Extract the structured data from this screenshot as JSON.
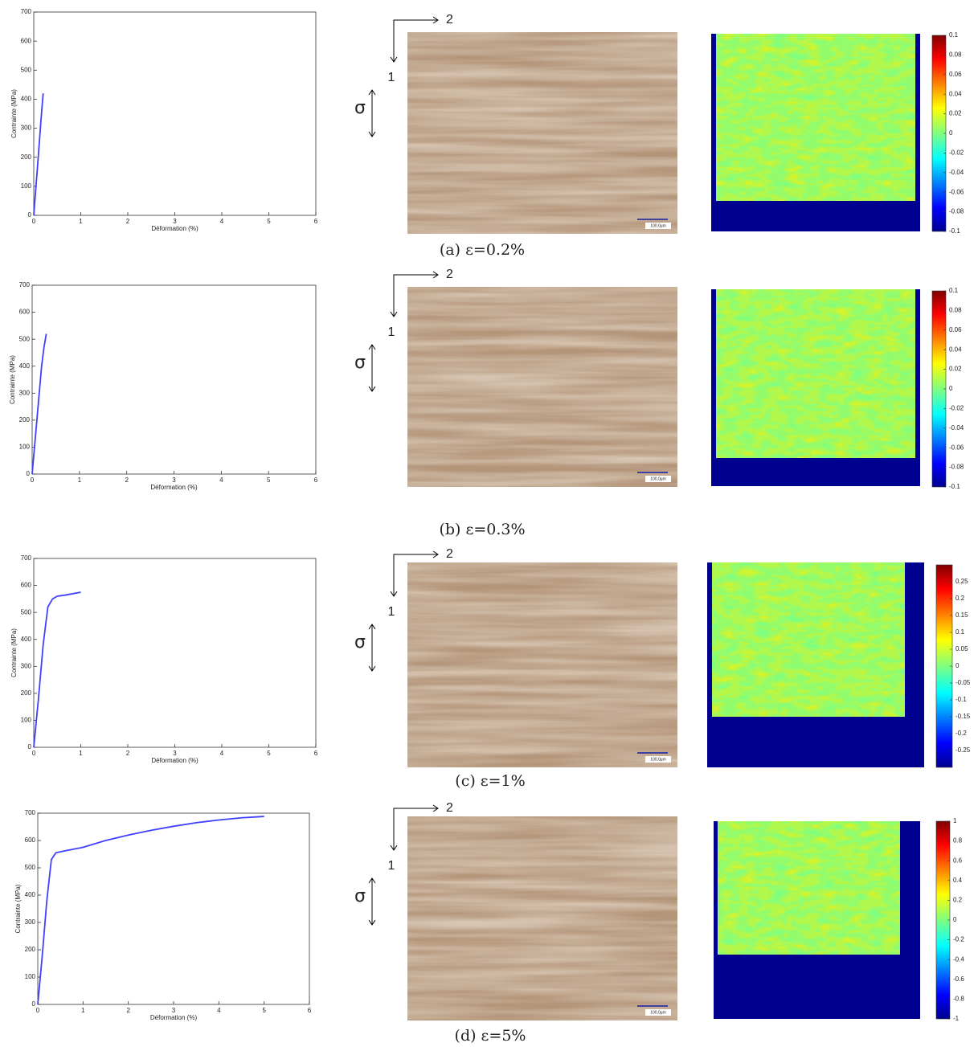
{
  "chart_data": [
    {
      "type": "line",
      "x_label": "Déformation (%)",
      "y_label": "Contrainte (MPa)",
      "x": [
        0,
        0.05,
        0.1,
        0.15,
        0.2
      ],
      "values": [
        0,
        105,
        210,
        320,
        420
      ],
      "color": "#3f3fff",
      "xlim": [
        0,
        6
      ],
      "ylim": [
        0,
        700
      ],
      "xticks": [
        0,
        1,
        2,
        3,
        4,
        5,
        6
      ],
      "yticks": [
        0,
        100,
        200,
        300,
        400,
        500,
        600,
        700
      ]
    },
    {
      "type": "line",
      "x_label": "Déformation (%)",
      "y_label": "Contrainte (MPa)",
      "x": [
        0,
        0.1,
        0.2,
        0.25,
        0.3
      ],
      "values": [
        0,
        200,
        400,
        470,
        520
      ],
      "color": "#3f3fff",
      "xlim": [
        0,
        6
      ],
      "ylim": [
        0,
        700
      ],
      "xticks": [
        0,
        1,
        2,
        3,
        4,
        5,
        6
      ],
      "yticks": [
        0,
        100,
        200,
        300,
        400,
        500,
        600,
        700
      ]
    },
    {
      "type": "line",
      "x_label": "Déformation (%)",
      "y_label": "Contrainte (MPa)",
      "x": [
        0,
        0.1,
        0.2,
        0.3,
        0.4,
        0.5,
        0.7,
        1.0
      ],
      "values": [
        0,
        180,
        380,
        520,
        550,
        560,
        565,
        575
      ],
      "color": "#3f3fff",
      "xlim": [
        0,
        6
      ],
      "ylim": [
        0,
        700
      ],
      "xticks": [
        0,
        1,
        2,
        3,
        4,
        5,
        6
      ],
      "yticks": [
        0,
        100,
        200,
        300,
        400,
        500,
        600,
        700
      ]
    },
    {
      "type": "line",
      "x_label": "Déformation (%)",
      "y_label": "Contrainte (MPa)",
      "x": [
        0,
        0.1,
        0.2,
        0.3,
        0.4,
        0.6,
        1,
        1.5,
        2,
        2.5,
        3,
        3.5,
        4,
        4.5,
        5
      ],
      "values": [
        0,
        180,
        380,
        530,
        555,
        562,
        575,
        600,
        620,
        637,
        652,
        665,
        675,
        683,
        688
      ],
      "color": "#3f3fff",
      "xlim": [
        0,
        6
      ],
      "ylim": [
        0,
        700
      ],
      "xticks": [
        0,
        1,
        2,
        3,
        4,
        5,
        6
      ],
      "yticks": [
        0,
        100,
        200,
        300,
        400,
        500,
        600,
        700
      ]
    }
  ],
  "panels": [
    {
      "caption": "(a) ε=0.2%",
      "axis_1": "1",
      "axis_2": "2",
      "stress": "σ",
      "scale_bar": "100,0µm",
      "colorbar": {
        "lim": [
          -0.1,
          0.1
        ],
        "ticks": [
          0.1,
          0.08,
          0.06,
          0.04,
          0.02,
          0,
          -0.02,
          -0.04,
          -0.06,
          -0.08,
          -0.1
        ]
      }
    },
    {
      "caption": "(b) ε=0.3%",
      "axis_1": "1",
      "axis_2": "2",
      "stress": "σ",
      "scale_bar": "100,0µm",
      "colorbar": {
        "lim": [
          -0.1,
          0.1
        ],
        "ticks": [
          0.1,
          0.08,
          0.06,
          0.04,
          0.02,
          0,
          -0.02,
          -0.04,
          -0.06,
          -0.08,
          -0.1
        ]
      }
    },
    {
      "caption": "(c) ε=1%",
      "axis_1": "1",
      "axis_2": "2",
      "stress": "σ",
      "scale_bar": "100,0µm",
      "colorbar": {
        "lim": [
          -0.3,
          0.3
        ],
        "ticks": [
          0.25,
          0.2,
          0.15,
          0.1,
          0.05,
          0,
          -0.05,
          -0.1,
          -0.15,
          -0.2,
          -0.25
        ]
      }
    },
    {
      "caption": "(d) ε=5%",
      "axis_1": "1",
      "axis_2": "2",
      "stress": "σ",
      "scale_bar": "100,0µm",
      "colorbar": {
        "lim": [
          -1,
          1
        ],
        "ticks": [
          1,
          0.8,
          0.6,
          0.4,
          0.2,
          0,
          -0.2,
          -0.4,
          -0.6,
          -0.8,
          -1
        ]
      }
    }
  ]
}
